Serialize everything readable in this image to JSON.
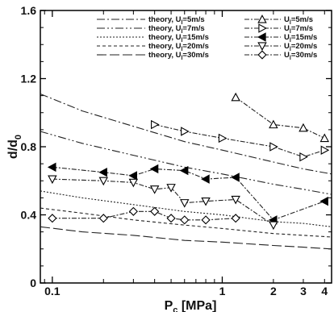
{
  "chart_data": {
    "type": "line",
    "xlabel": "P_c [MPa]",
    "ylabel": "d/d_0",
    "xscale": "log",
    "xlim": [
      0.085,
      4.4
    ],
    "ylim": [
      0,
      1.6
    ],
    "x_ticks": [
      0.1,
      1,
      2,
      3,
      4
    ],
    "x_tick_labels": [
      "0.1",
      "1",
      "2",
      "3",
      "4"
    ],
    "y_ticks": [
      0,
      0.4,
      0.8,
      1.2,
      1.6
    ],
    "y_tick_labels": [
      "0",
      "0.4",
      "0.8",
      "1.2",
      "1.6"
    ],
    "grid": false,
    "legend_position": "top-right",
    "theory_series": [
      {
        "name": "theory, U_l=5m/s",
        "dash": "10,3,2,3",
        "x": [
          0.085,
          0.15,
          0.3,
          0.6,
          1.0,
          2.0,
          3.0,
          4.4
        ],
        "y": [
          1.11,
          1.01,
          0.92,
          0.83,
          0.78,
          0.71,
          0.67,
          0.64
        ]
      },
      {
        "name": "theory, U_l=7m/s",
        "dash": "10,3,2,3,2,3",
        "x": [
          0.085,
          0.15,
          0.3,
          0.6,
          1.0,
          2.0,
          3.0,
          4.4
        ],
        "y": [
          0.89,
          0.82,
          0.75,
          0.68,
          0.64,
          0.58,
          0.55,
          0.52
        ]
      },
      {
        "name": "theory, U_l=15m/s",
        "dash": "2,2",
        "x": [
          0.085,
          0.15,
          0.3,
          0.6,
          1.0,
          2.0,
          3.0,
          4.4
        ],
        "y": [
          0.54,
          0.5,
          0.46,
          0.42,
          0.4,
          0.36,
          0.35,
          0.33
        ]
      },
      {
        "name": "theory, U_l=20m/s",
        "dash": "4,3",
        "x": [
          0.085,
          0.15,
          0.3,
          0.6,
          1.0,
          2.0,
          3.0,
          4.4
        ],
        "y": [
          0.44,
          0.41,
          0.37,
          0.34,
          0.32,
          0.29,
          0.28,
          0.27
        ]
      },
      {
        "name": "theory, U_l=30m/s",
        "dash": "12,4",
        "x": [
          0.085,
          0.15,
          0.3,
          0.6,
          1.0,
          2.0,
          3.0,
          4.4
        ],
        "y": [
          0.33,
          0.3,
          0.28,
          0.25,
          0.24,
          0.22,
          0.21,
          0.2
        ]
      }
    ],
    "series": [
      {
        "name": "U_l=5m/s",
        "marker": "triangle-up",
        "x": [
          1.2,
          2.0,
          3.0,
          4.0
        ],
        "y": [
          1.09,
          0.93,
          0.91,
          0.85
        ]
      },
      {
        "name": "U_l=7m/s",
        "marker": "triangle-right",
        "x": [
          0.4,
          0.6,
          1.0,
          2.0,
          3.0,
          4.0
        ],
        "y": [
          0.93,
          0.89,
          0.85,
          0.8,
          0.74,
          0.78
        ]
      },
      {
        "name": "U_l=15m/s",
        "marker": "triangle-left",
        "x": [
          0.1,
          0.2,
          0.3,
          0.4,
          0.6,
          0.8,
          1.2,
          2.0,
          4.0
        ],
        "y": [
          0.68,
          0.65,
          0.63,
          0.67,
          0.66,
          0.61,
          0.62,
          0.37,
          0.48
        ]
      },
      {
        "name": "U_l=20m/s",
        "marker": "triangle-down",
        "x": [
          0.1,
          0.2,
          0.3,
          0.4,
          0.5,
          0.6,
          0.8,
          1.2,
          2.0
        ],
        "y": [
          0.61,
          0.6,
          0.59,
          0.55,
          0.56,
          0.47,
          0.48,
          0.49,
          0.34
        ]
      },
      {
        "name": "U_l=30m/s",
        "marker": "diamond",
        "x": [
          0.1,
          0.2,
          0.3,
          0.4,
          0.5,
          0.6,
          0.8,
          1.2
        ],
        "y": [
          0.38,
          0.38,
          0.42,
          0.42,
          0.38,
          0.37,
          0.37,
          0.38
        ]
      }
    ]
  }
}
